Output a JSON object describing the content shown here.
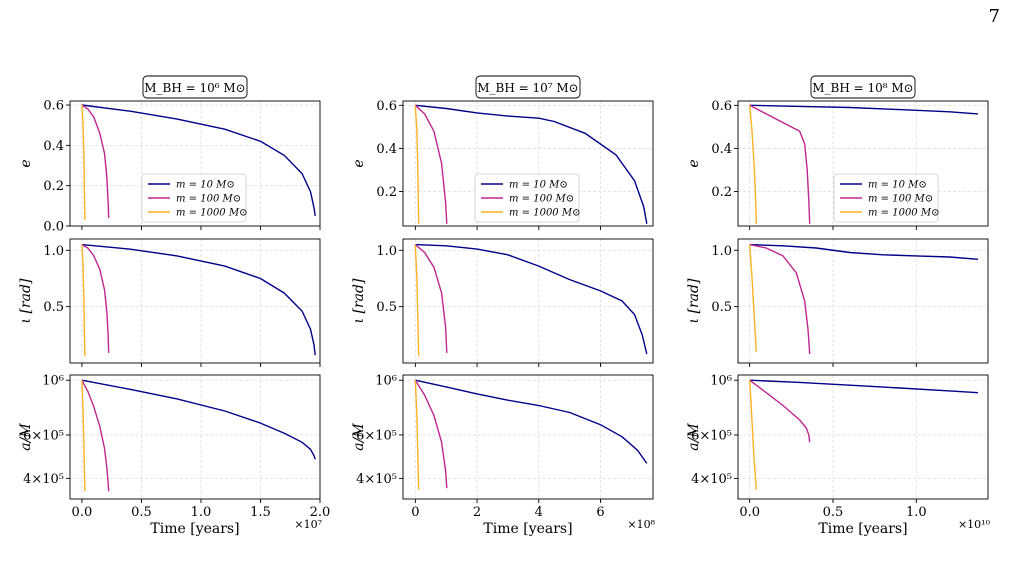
{
  "page_number": "7",
  "colors": {
    "m10": "#00008b",
    "m100": "#c02690",
    "m1000": "#fbb224",
    "grid": "#dddddd",
    "axes": "#000000"
  },
  "legend": [
    {
      "label": "m = 10 M⊙",
      "color": "#00008b"
    },
    {
      "label": "m = 100 M⊙",
      "color": "#c02690"
    },
    {
      "label": "m = 1000 M⊙",
      "color": "#fbb224"
    }
  ],
  "chart_data": [
    {
      "type": "line",
      "title": "M_BH = 10⁶ M⊙",
      "xlabel": "Time [years]",
      "x_multiplier": "×10⁷",
      "xlim": [
        -0.1,
        2.0
      ],
      "xticks": [
        0.0,
        0.5,
        1.0,
        1.5,
        2.0
      ],
      "xticklabels": [
        "0.0",
        "0.5",
        "1.0",
        "1.5",
        "2.0"
      ],
      "panels": [
        {
          "ylabel": "e",
          "ylim": [
            0.0,
            0.62
          ],
          "yscale": "linear",
          "yticks": [
            0.0,
            0.2,
            0.4,
            0.6
          ],
          "yticklabels": [
            "0.0",
            "0.2",
            "0.4",
            "0.6"
          ],
          "legend": "lower-center",
          "series": [
            {
              "name": "m = 10 M⊙",
              "x": [
                0,
                0.4,
                0.8,
                1.2,
                1.5,
                1.7,
                1.85,
                1.92,
                1.95,
                1.96
              ],
              "y": [
                0.6,
                0.57,
                0.53,
                0.48,
                0.42,
                0.35,
                0.26,
                0.17,
                0.09,
                0.05
              ]
            },
            {
              "name": "m = 100 M⊙",
              "x": [
                0,
                0.05,
                0.1,
                0.15,
                0.19,
                0.21,
                0.22,
                0.225
              ],
              "y": [
                0.6,
                0.58,
                0.54,
                0.46,
                0.36,
                0.24,
                0.12,
                0.04
              ]
            },
            {
              "name": "m = 1000 M⊙",
              "x": [
                0,
                0.01,
                0.018,
                0.022,
                0.024
              ],
              "y": [
                0.6,
                0.5,
                0.32,
                0.15,
                0.03
              ]
            }
          ]
        },
        {
          "ylabel": "ι [rad]",
          "ylim": [
            0.0,
            1.1
          ],
          "yscale": "linear",
          "yticks": [
            0.5,
            1.0
          ],
          "yticklabels": [
            "0.5",
            "1.0"
          ],
          "legend": "none",
          "series": [
            {
              "name": "m = 10 M⊙",
              "x": [
                0,
                0.4,
                0.8,
                1.2,
                1.5,
                1.7,
                1.85,
                1.92,
                1.95,
                1.96
              ],
              "y": [
                1.05,
                1.01,
                0.95,
                0.86,
                0.75,
                0.62,
                0.46,
                0.3,
                0.16,
                0.07
              ]
            },
            {
              "name": "m = 100 M⊙",
              "x": [
                0,
                0.05,
                0.1,
                0.15,
                0.19,
                0.21,
                0.22,
                0.225
              ],
              "y": [
                1.05,
                1.02,
                0.95,
                0.83,
                0.65,
                0.45,
                0.25,
                0.09
              ]
            },
            {
              "name": "m = 1000 M⊙",
              "x": [
                0,
                0.01,
                0.018,
                0.022,
                0.024
              ],
              "y": [
                1.05,
                0.85,
                0.5,
                0.22,
                0.06
              ]
            }
          ]
        },
        {
          "ylabel": "a/M",
          "ylim": [
            330000,
            1050000
          ],
          "yscale": "log",
          "yticks": [
            400000,
            600000,
            1000000
          ],
          "yticklabels": [
            "4×10⁵",
            "6×10⁵",
            "10⁶"
          ],
          "legend": "none",
          "series": [
            {
              "name": "m = 10 M⊙",
              "x": [
                0,
                0.4,
                0.8,
                1.2,
                1.5,
                1.7,
                1.85,
                1.92,
                1.95,
                1.96
              ],
              "y": [
                1000000,
                920000,
                840000,
                750000,
                670000,
                610000,
                560000,
                525000,
                495000,
                478000
              ]
            },
            {
              "name": "m = 100 M⊙",
              "x": [
                0,
                0.05,
                0.1,
                0.15,
                0.19,
                0.21,
                0.22,
                0.225
              ],
              "y": [
                1000000,
                900000,
                780000,
                650000,
                530000,
                440000,
                385000,
                355000
              ]
            },
            {
              "name": "m = 1000 M⊙",
              "x": [
                0,
                0.01,
                0.018,
                0.022,
                0.024
              ],
              "y": [
                1000000,
                750000,
                520000,
                410000,
                355000
              ]
            }
          ]
        }
      ]
    },
    {
      "type": "line",
      "title": "M_BH = 10⁷ M⊙",
      "xlabel": "Time [years]",
      "x_multiplier": "×10⁸",
      "xlim": [
        -0.4,
        7.7
      ],
      "xticks": [
        0,
        2,
        4,
        6
      ],
      "xticklabels": [
        "0",
        "2",
        "4",
        "6"
      ],
      "panels": [
        {
          "ylabel": "e",
          "ylim": [
            0.04,
            0.62
          ],
          "yscale": "linear",
          "yticks": [
            0.2,
            0.4,
            0.6
          ],
          "yticklabels": [
            "0.2",
            "0.4",
            "0.6"
          ],
          "legend": "lower-center",
          "series": [
            {
              "name": "m = 10 M⊙",
              "x": [
                0,
                1,
                2,
                3,
                4,
                4.5,
                5.5,
                6.5,
                7.1,
                7.4,
                7.5
              ],
              "y": [
                0.6,
                0.585,
                0.565,
                0.55,
                0.54,
                0.525,
                0.47,
                0.37,
                0.25,
                0.13,
                0.05
              ]
            },
            {
              "name": "m = 100 M⊙",
              "x": [
                0,
                0.3,
                0.6,
                0.85,
                0.98,
                1.02
              ],
              "y": [
                0.6,
                0.56,
                0.48,
                0.33,
                0.15,
                0.05
              ]
            },
            {
              "name": "m = 1000 M⊙",
              "x": [
                0,
                0.05,
                0.08,
                0.1,
                0.11
              ],
              "y": [
                0.6,
                0.48,
                0.3,
                0.14,
                0.05
              ]
            }
          ]
        },
        {
          "ylabel": "ι [rad]",
          "ylim": [
            0.0,
            1.1
          ],
          "yscale": "linear",
          "yticks": [
            0.5,
            1.0
          ],
          "yticklabels": [
            "0.5",
            "1.0"
          ],
          "legend": "none",
          "series": [
            {
              "name": "m = 10 M⊙",
              "x": [
                0,
                1,
                2,
                3,
                4,
                5,
                6,
                6.7,
                7.1,
                7.35,
                7.5
              ],
              "y": [
                1.05,
                1.04,
                1.01,
                0.96,
                0.86,
                0.74,
                0.64,
                0.55,
                0.43,
                0.25,
                0.08
              ]
            },
            {
              "name": "m = 100 M⊙",
              "x": [
                0,
                0.3,
                0.6,
                0.85,
                0.98,
                1.02
              ],
              "y": [
                1.05,
                0.98,
                0.85,
                0.62,
                0.32,
                0.09
              ]
            },
            {
              "name": "m = 1000 M⊙",
              "x": [
                0,
                0.05,
                0.08,
                0.1,
                0.11
              ],
              "y": [
                1.05,
                0.75,
                0.4,
                0.18,
                0.06
              ]
            }
          ]
        },
        {
          "ylabel": "a/M",
          "ylim": [
            330000,
            1050000
          ],
          "yscale": "log",
          "yticks": [
            400000,
            600000,
            1000000
          ],
          "yticklabels": [
            "4×10⁵",
            "6×10⁵",
            "10⁶"
          ],
          "legend": "none",
          "series": [
            {
              "name": "m = 10 M⊙",
              "x": [
                0,
                1,
                2,
                3,
                4,
                5,
                6,
                6.7,
                7.2,
                7.5
              ],
              "y": [
                1000000,
                940000,
                880000,
                830000,
                790000,
                740000,
                660000,
                590000,
                520000,
                460000
              ]
            },
            {
              "name": "m = 100 M⊙",
              "x": [
                0,
                0.3,
                0.6,
                0.85,
                0.98,
                1.02
              ],
              "y": [
                1000000,
                870000,
                720000,
                560000,
                430000,
                365000
              ]
            },
            {
              "name": "m = 1000 M⊙",
              "x": [
                0,
                0.05,
                0.08,
                0.1,
                0.11
              ],
              "y": [
                1000000,
                720000,
                500000,
                400000,
                360000
              ]
            }
          ]
        }
      ]
    },
    {
      "type": "line",
      "title": "M_BH = 10⁸ M⊙",
      "xlabel": "Time [years]",
      "x_multiplier": "×10¹⁰",
      "xlim": [
        -0.07,
        1.43
      ],
      "xticks": [
        0.0,
        0.5,
        1.0
      ],
      "xticklabels": [
        "0.0",
        "0.5",
        "1.0"
      ],
      "panels": [
        {
          "ylabel": "e",
          "ylim": [
            0.04,
            0.62
          ],
          "yscale": "linear",
          "yticks": [
            0.2,
            0.4,
            0.6
          ],
          "yticklabels": [
            "0.2",
            "0.4",
            "0.6"
          ],
          "legend": "lower-right",
          "series": [
            {
              "name": "m = 10 M⊙",
              "x": [
                0,
                0.3,
                0.6,
                0.9,
                1.2,
                1.37
              ],
              "y": [
                0.6,
                0.595,
                0.59,
                0.58,
                0.57,
                0.56
              ]
            },
            {
              "name": "m = 100 M⊙",
              "x": [
                0,
                0.1,
                0.2,
                0.3,
                0.33,
                0.345,
                0.355,
                0.36
              ],
              "y": [
                0.6,
                0.56,
                0.52,
                0.48,
                0.42,
                0.3,
                0.16,
                0.05
              ]
            },
            {
              "name": "m = 1000 M⊙",
              "x": [
                0,
                0.012,
                0.025,
                0.035,
                0.04
              ],
              "y": [
                0.6,
                0.5,
                0.35,
                0.18,
                0.05
              ]
            }
          ]
        },
        {
          "ylabel": "ι [rad]",
          "ylim": [
            0.0,
            1.1
          ],
          "yscale": "linear",
          "yticks": [
            0.5,
            1.0
          ],
          "yticklabels": [
            "0.5",
            "1.0"
          ],
          "legend": "none",
          "series": [
            {
              "name": "m = 10 M⊙",
              "x": [
                0,
                0.2,
                0.4,
                0.6,
                0.8,
                1.0,
                1.2,
                1.37
              ],
              "y": [
                1.05,
                1.04,
                1.02,
                0.98,
                0.96,
                0.95,
                0.94,
                0.92
              ]
            },
            {
              "name": "m = 100 M⊙",
              "x": [
                0,
                0.1,
                0.2,
                0.28,
                0.33,
                0.35,
                0.36
              ],
              "y": [
                1.05,
                1.02,
                0.95,
                0.8,
                0.55,
                0.3,
                0.08
              ]
            },
            {
              "name": "m = 1000 M⊙",
              "x": [
                0,
                0.012,
                0.025,
                0.035,
                0.04
              ],
              "y": [
                1.05,
                0.8,
                0.48,
                0.22,
                0.1
              ]
            }
          ]
        },
        {
          "ylabel": "a/M",
          "ylim": [
            330000,
            1050000
          ],
          "yscale": "log",
          "yticks": [
            400000,
            600000,
            1000000
          ],
          "yticklabels": [
            "4×10⁵",
            "6×10⁵",
            "10⁶"
          ],
          "legend": "none",
          "series": [
            {
              "name": "m = 10 M⊙",
              "x": [
                0,
                0.3,
                0.6,
                0.9,
                1.2,
                1.37
              ],
              "y": [
                1000000,
                980000,
                955000,
                930000,
                905000,
                890000
              ]
            },
            {
              "name": "m = 100 M⊙",
              "x": [
                0,
                0.1,
                0.2,
                0.3,
                0.34,
                0.355,
                0.36
              ],
              "y": [
                1000000,
                890000,
                790000,
                690000,
                640000,
                600000,
                560000
              ]
            },
            {
              "name": "m = 1000 M⊙",
              "x": [
                0,
                0.012,
                0.025,
                0.035,
                0.04
              ],
              "y": [
                1000000,
                720000,
                500000,
                400000,
                360000
              ]
            }
          ]
        }
      ]
    }
  ]
}
